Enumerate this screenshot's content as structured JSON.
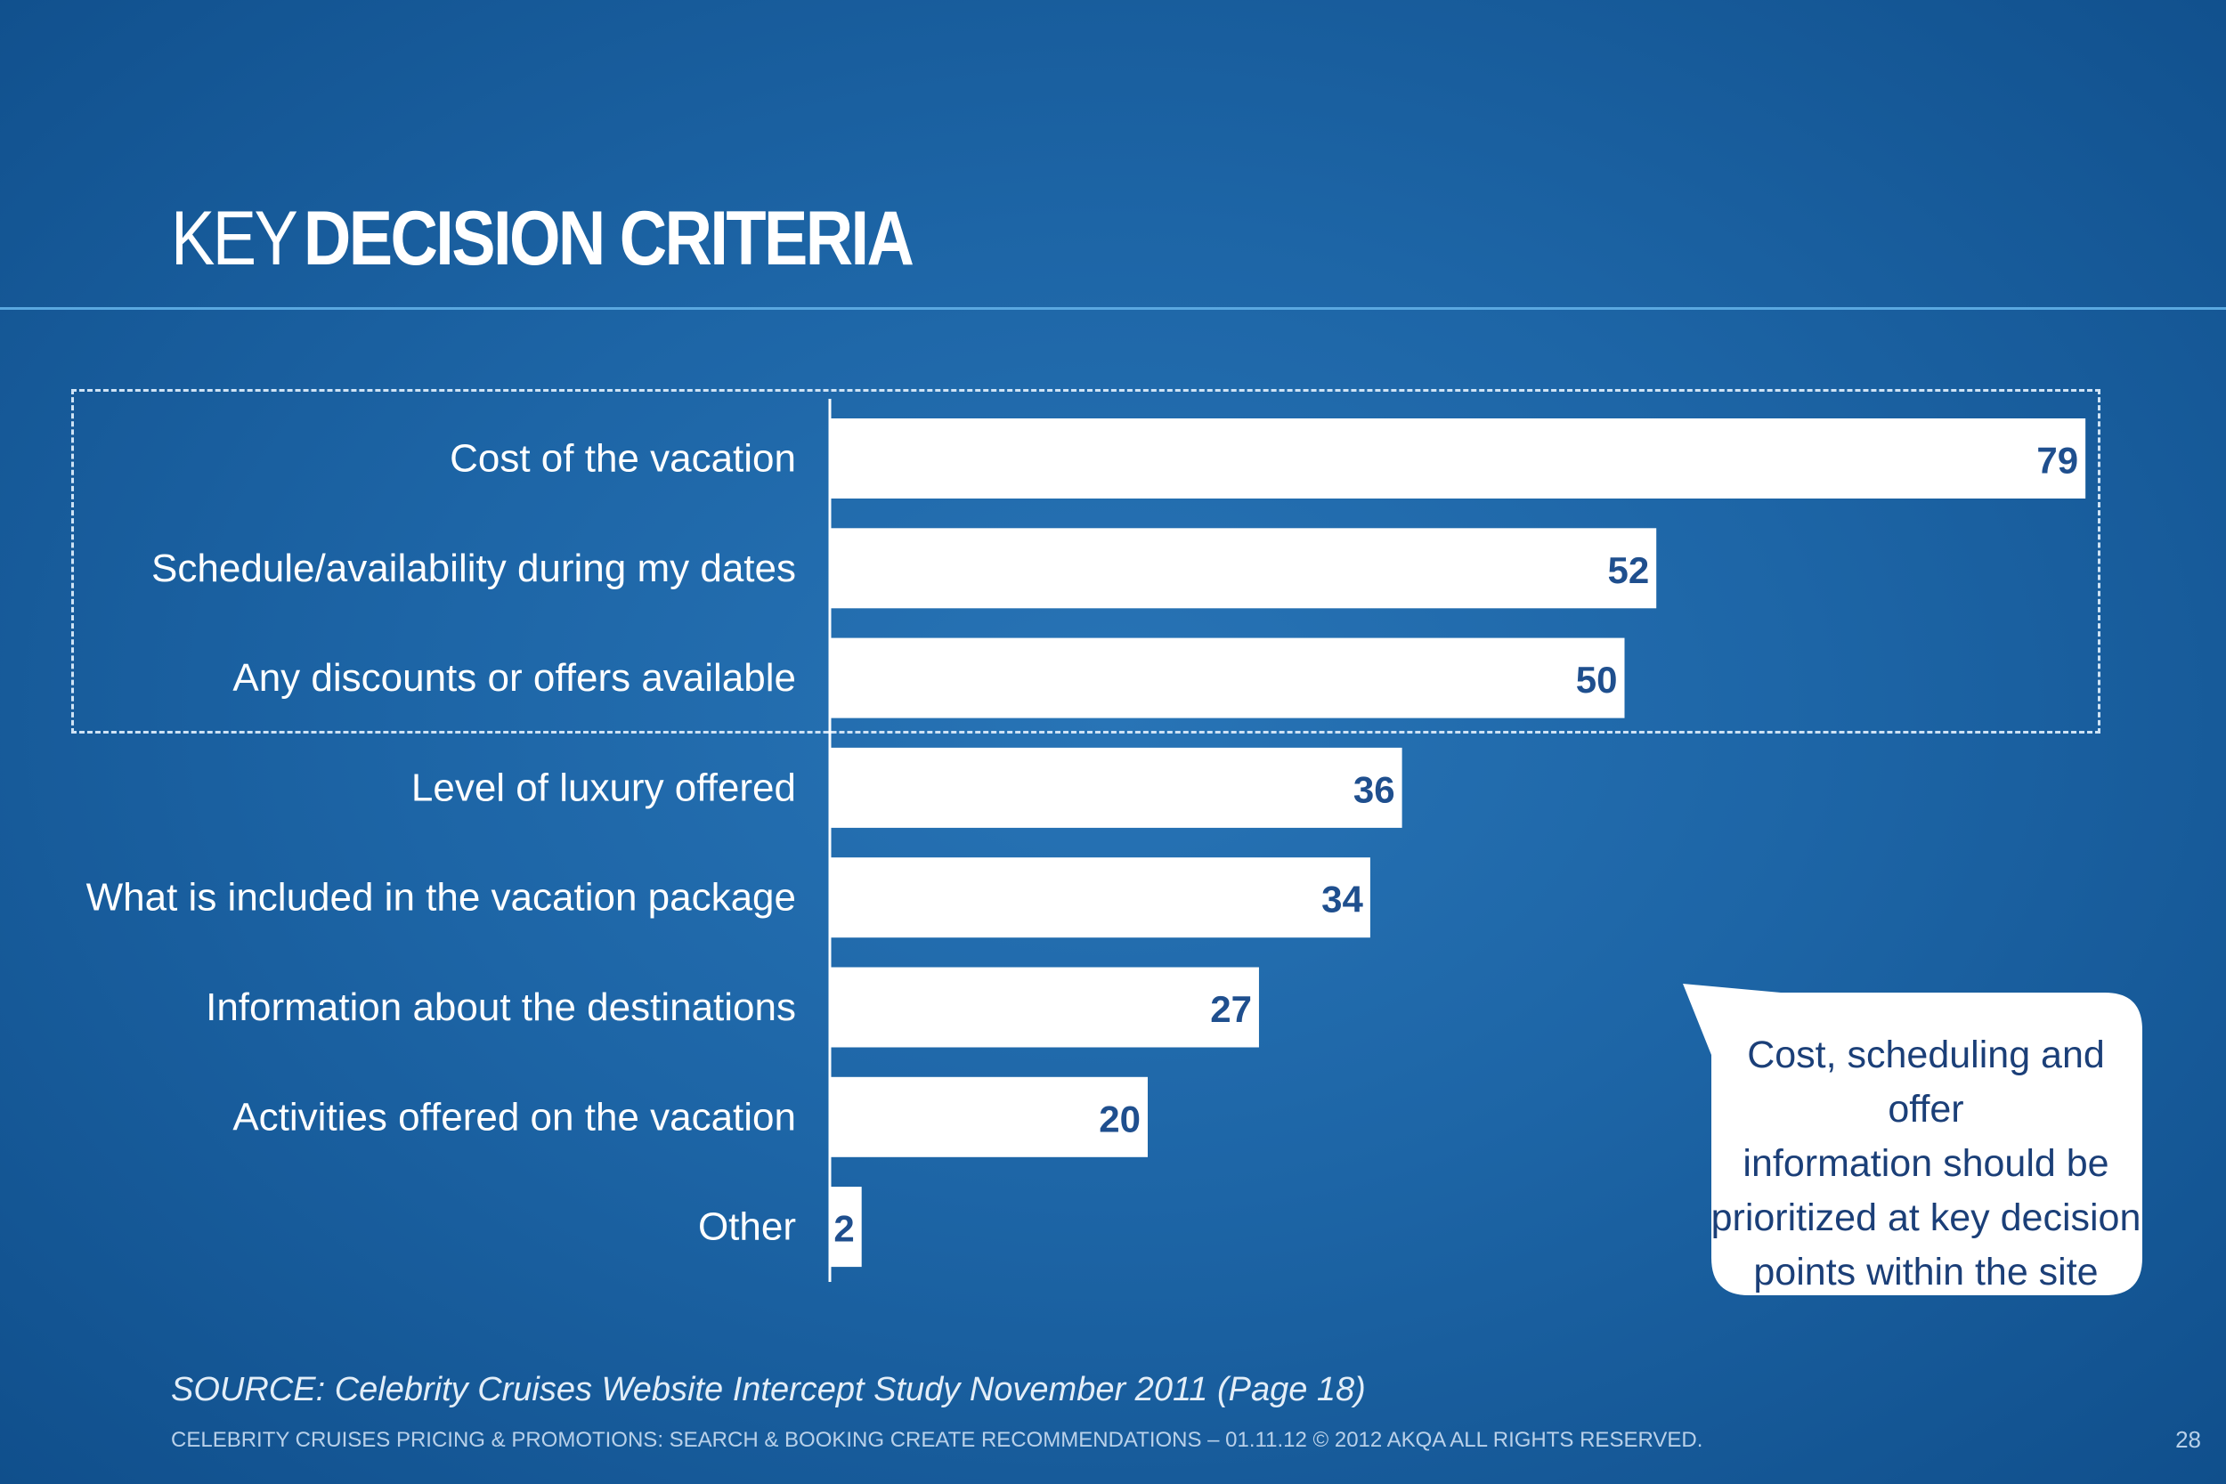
{
  "title": {
    "light": "KEY",
    "bold": "DECISION CRITERIA"
  },
  "colors": {
    "background": "#1d65a6",
    "bar": "#ffffff",
    "value_label": "#1f4f8e",
    "callout_text": "#1b3f78",
    "rule": "#5aa8e0"
  },
  "chart_data": {
    "type": "bar",
    "orientation": "horizontal",
    "categories": [
      "Cost of the vacation",
      "Schedule/availability during my dates",
      "Any discounts or offers available",
      "Level of luxury offered",
      "What is included in the vacation package",
      "Information about the destinations",
      "Activities offered on the vacation",
      "Other"
    ],
    "values": [
      79,
      52,
      50,
      36,
      34,
      27,
      20,
      2
    ],
    "xlim": [
      0,
      80
    ],
    "grid": false,
    "data_labels": true,
    "highlighted_categories": [
      0,
      1,
      2
    ]
  },
  "callout": {
    "lines": [
      "Cost, scheduling and offer",
      "information should be",
      "prioritized at key decision",
      "points within the site"
    ]
  },
  "source": "SOURCE: Celebrity Cruises Website Intercept Study November 2011 (Page 18)",
  "footer": "CELEBRITY CRUISES PRICING & PROMOTIONS: SEARCH & BOOKING CREATE RECOMMENDATIONS – 01.11.12 © 2012 AKQA ALL RIGHTS RESERVED.",
  "page_number": "28"
}
